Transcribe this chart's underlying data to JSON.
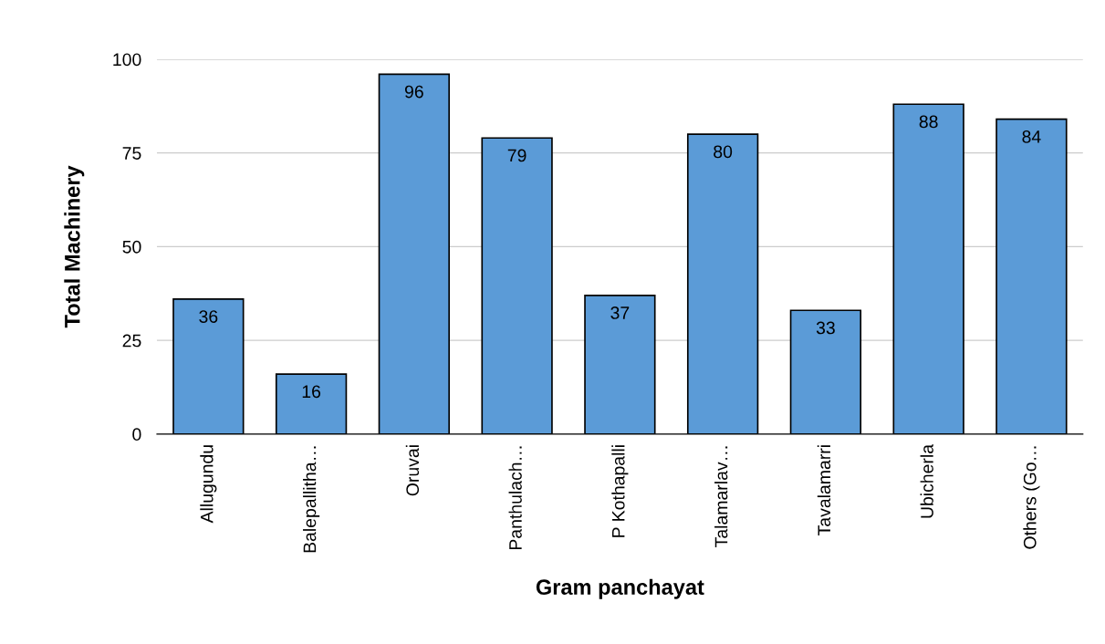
{
  "chart_data": {
    "type": "bar",
    "xlabel": "Gram panchayat",
    "ylabel": "Total Machinery",
    "categories": [
      "Allugundu",
      "Balepallitha…",
      "Oruvai",
      "Panthulach…",
      "P Kothapalli",
      "Talamarlav…",
      "Tavalamarri",
      "Ubicherla",
      "Others (Go…"
    ],
    "values": [
      36,
      16,
      96,
      79,
      37,
      80,
      33,
      88,
      84
    ],
    "color": "#5b9bd7",
    "ylim": [
      0,
      100
    ],
    "yticks": [
      0,
      25,
      50,
      75,
      100
    ],
    "grid": "y",
    "data_labels": true,
    "tick_labels": "y"
  }
}
